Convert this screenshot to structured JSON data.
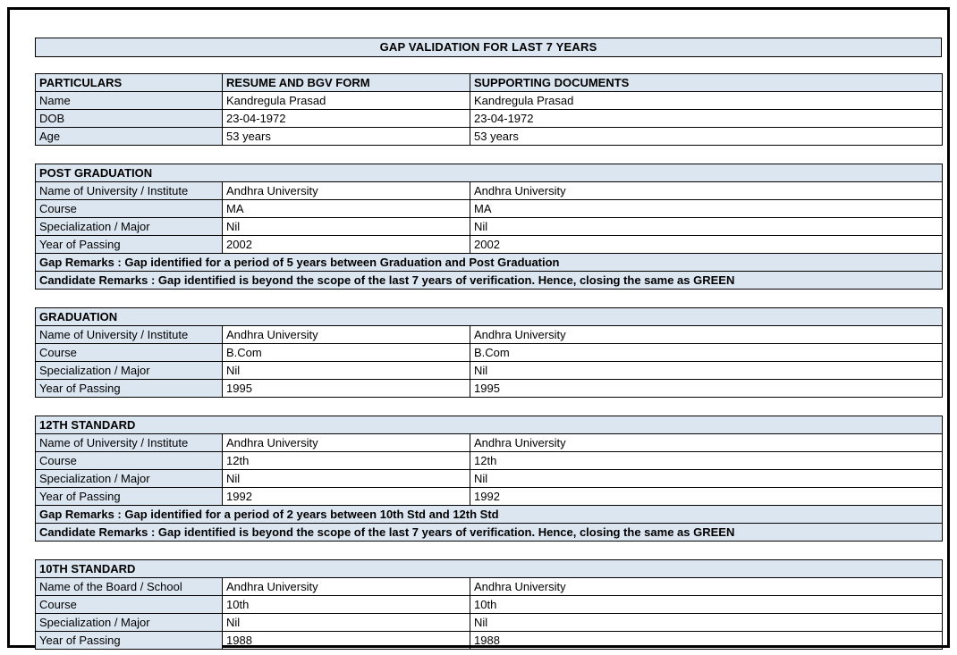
{
  "page": {
    "title": "GAP VALIDATION FOR LAST 7 YEARS",
    "colors": {
      "highlight_bg": "#dce6f1",
      "border": "#000000",
      "text": "#000000"
    }
  },
  "particulars": {
    "headers": [
      "PARTICULARS",
      "RESUME AND BGV FORM",
      "SUPPORTING DOCUMENTS"
    ],
    "rows": [
      {
        "label": "Name",
        "resume": "Kandregula Prasad",
        "supporting": "Kandregula Prasad"
      },
      {
        "label": "DOB",
        "resume": "23-04-1972",
        "supporting": "23-04-1972"
      },
      {
        "label": "Age",
        "resume": "53 years",
        "supporting": "53 years"
      }
    ]
  },
  "sections": [
    {
      "title": "POST GRADUATION",
      "rows": [
        {
          "label": "Name of University / Institute",
          "resume": "Andhra University",
          "supporting": "Andhra University"
        },
        {
          "label": "Course",
          "resume": "MA",
          "supporting": "MA"
        },
        {
          "label": "Specialization / Major",
          "resume": "Nil",
          "supporting": "Nil"
        },
        {
          "label": "Year of Passing",
          "resume": "2002",
          "supporting": "2002"
        }
      ],
      "remarks": [
        "Gap Remarks : Gap identified for a period of 5 years between Graduation and Post Graduation",
        "Candidate Remarks : Gap identified is beyond the scope of the last 7 years of verification. Hence, closing the same as GREEN"
      ]
    },
    {
      "title": "GRADUATION",
      "rows": [
        {
          "label": "Name of University / Institute",
          "resume": "Andhra University",
          "supporting": "Andhra University"
        },
        {
          "label": "Course",
          "resume": "B.Com",
          "supporting": "B.Com"
        },
        {
          "label": "Specialization / Major",
          "resume": "Nil",
          "supporting": "Nil"
        },
        {
          "label": "Year of Passing",
          "resume": "1995",
          "supporting": "1995"
        }
      ],
      "remarks": []
    },
    {
      "title": "12TH STANDARD",
      "rows": [
        {
          "label": "Name of University / Institute",
          "resume": "Andhra University",
          "supporting": "Andhra University"
        },
        {
          "label": "Course",
          "resume": "12th",
          "supporting": "12th"
        },
        {
          "label": "Specialization / Major",
          "resume": "Nil",
          "supporting": "Nil"
        },
        {
          "label": "Year of Passing",
          "resume": "1992",
          "supporting": "1992"
        }
      ],
      "remarks": [
        "Gap Remarks : Gap identified for a period of 2 years between 10th Std and 12th Std",
        "Candidate Remarks : Gap identified is beyond the scope of the last 7 years of verification. Hence, closing the same as GREEN"
      ]
    },
    {
      "title": "10TH STANDARD",
      "rows": [
        {
          "label": "Name of the Board / School",
          "resume": "Andhra University",
          "supporting": "Andhra University"
        },
        {
          "label": "Course",
          "resume": "10th",
          "supporting": "10th"
        },
        {
          "label": "Specialization / Major",
          "resume": "Nil",
          "supporting": "Nil"
        },
        {
          "label": "Year of Passing",
          "resume": "1988",
          "supporting": "1988"
        }
      ],
      "remarks": []
    }
  ]
}
